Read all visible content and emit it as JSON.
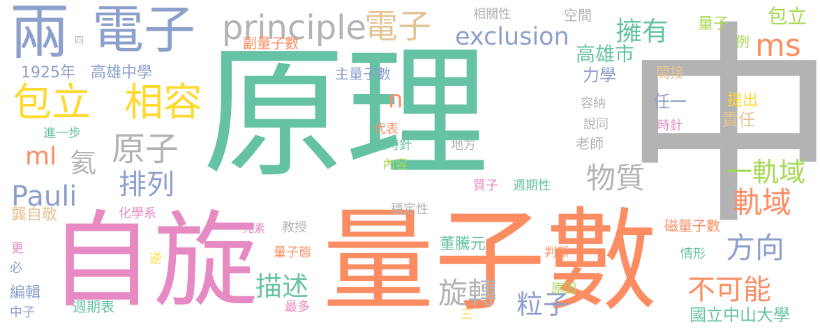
{
  "palette": {
    "teal": "#66c2a5",
    "orange": "#fc8d62",
    "periwinkle": "#8da0cb",
    "pink": "#e78ac3",
    "lime": "#a6d854",
    "yellow": "#ffd92f",
    "tan": "#e5c494",
    "gray": "#b3b3b3"
  },
  "words": [
    "原理",
    "中",
    "量子數",
    "自旋",
    "電子",
    "兩",
    "電子",
    "principle",
    "exclusion",
    "擁有",
    "ms",
    "包立",
    "高雄市",
    "包立",
    "相容",
    "原子",
    "物質",
    "一軌域",
    "軌域",
    "方向",
    "不可能",
    "旋轉",
    "粒子",
    "描述",
    "Pauli",
    "排列",
    "ml",
    "氦",
    "n",
    "力學",
    "相關性",
    "空間",
    "量子",
    "例",
    "副量子數",
    "主量子數",
    "1925年",
    "高雄中學",
    "四",
    "間接",
    "容納",
    "說同",
    "任一",
    "提出",
    "責任",
    "時針",
    "老師",
    "進一步",
    "代表",
    "順時針",
    "內容",
    "地方",
    "質子",
    "週期性",
    "穩定性",
    "化學系",
    "龔自敬",
    "元素",
    "教授",
    "董騰元",
    "更",
    "逆",
    "量子態",
    "判斷",
    "情形",
    "磁量子數",
    "必",
    "編輯",
    "中子",
    "週期表",
    "原因",
    "最多",
    "三",
    "國立中山大學"
  ]
}
